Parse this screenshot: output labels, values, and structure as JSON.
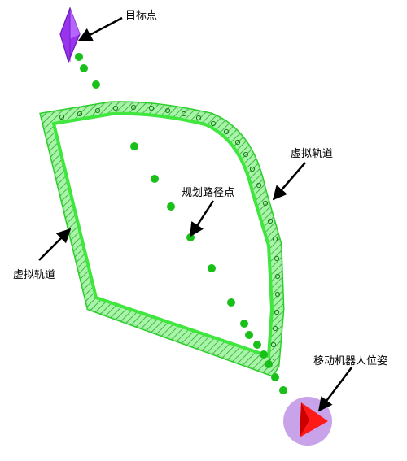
{
  "labels": {
    "target_point": "目标点",
    "virtual_track_right": "虚拟轨道",
    "virtual_track_left": "虚拟轨道",
    "planned_path_points": "规划路径点",
    "robot_pose": "移动机器人位姿"
  },
  "colors": {
    "track_fill": "#3ee63e",
    "track_hatch": "#1a7a1a",
    "path_point": "#19c019",
    "target": "#9933ee",
    "target_dark": "#6a16b8",
    "robot_disc": "#c9a3ea",
    "robot_marker": "#ff1a1a",
    "arrow": "#000000"
  },
  "icons": {
    "target": "target-diamond-icon",
    "robot": "robot-pose-icon"
  }
}
